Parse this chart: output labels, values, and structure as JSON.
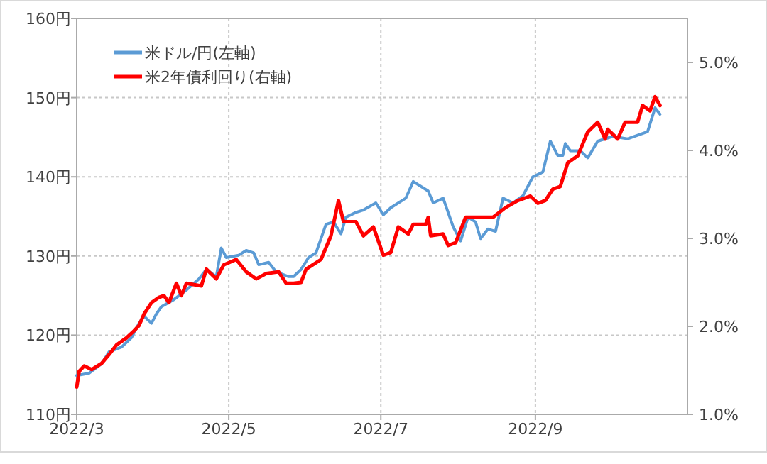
{
  "chart_data": {
    "type": "line",
    "xlim": [
      "2022-03-01",
      "2022-11-01"
    ],
    "xticks": [
      {
        "value": "2022-03-01",
        "label": "2022/3"
      },
      {
        "value": "2022-05-01",
        "label": "2022/5"
      },
      {
        "value": "2022-07-01",
        "label": "2022/7"
      },
      {
        "value": "2022-09-01",
        "label": "2022/9"
      }
    ],
    "ylim": [
      110,
      160
    ],
    "yticks": [
      {
        "value": 110,
        "label": "110円"
      },
      {
        "value": 120,
        "label": "120円"
      },
      {
        "value": 130,
        "label": "130円"
      },
      {
        "value": 140,
        "label": "140円"
      },
      {
        "value": 150,
        "label": "150円"
      },
      {
        "value": 160,
        "label": "160円"
      }
    ],
    "y2lim": [
      1,
      5.5
    ],
    "y2ticks": [
      {
        "value": 1,
        "label": "1.0%"
      },
      {
        "value": 2,
        "label": "2.0%"
      },
      {
        "value": 3,
        "label": "3.0%"
      },
      {
        "value": 4,
        "label": "4.0%"
      },
      {
        "value": 5,
        "label": "5.0%"
      }
    ],
    "grid": true,
    "legend": "top left",
    "line_style": "solid",
    "marker": "none",
    "series": [
      {
        "name": "米ドル/円(左軸)",
        "color": "#5b9bd5",
        "x": [
          "2022-03-01",
          "2022-03-06",
          "2022-03-11",
          "2022-03-14",
          "2022-03-19",
          "2022-03-23",
          "2022-03-26",
          "2022-03-28",
          "2022-03-31",
          "2022-04-02",
          "2022-04-04",
          "2022-04-09",
          "2022-04-14",
          "2022-04-19",
          "2022-04-22",
          "2022-04-26",
          "2022-04-28",
          "2022-04-30",
          "2022-05-05",
          "2022-05-08",
          "2022-05-11",
          "2022-05-13",
          "2022-05-17",
          "2022-05-20",
          "2022-05-25",
          "2022-05-27",
          "2022-05-30",
          "2022-06-02",
          "2022-06-05",
          "2022-06-09",
          "2022-06-12",
          "2022-06-15",
          "2022-06-17",
          "2022-06-21",
          "2022-06-24",
          "2022-06-29",
          "2022-07-02",
          "2022-07-05",
          "2022-07-11",
          "2022-07-14",
          "2022-07-20",
          "2022-07-22",
          "2022-07-26",
          "2022-07-30",
          "2022-08-02",
          "2022-08-05",
          "2022-08-08",
          "2022-08-10",
          "2022-08-13",
          "2022-08-16",
          "2022-08-19",
          "2022-08-23",
          "2022-08-27",
          "2022-08-31",
          "2022-09-04",
          "2022-09-07",
          "2022-09-10",
          "2022-09-12",
          "2022-09-13",
          "2022-09-15",
          "2022-09-19",
          "2022-09-22",
          "2022-09-26",
          "2022-10-02",
          "2022-10-08",
          "2022-10-16",
          "2022-10-19",
          "2022-10-21"
        ],
        "values": [
          114.9,
          115.2,
          116.4,
          117.9,
          118.5,
          119.7,
          121.5,
          122.4,
          121.5,
          122.7,
          123.6,
          124.5,
          125.7,
          127.1,
          128.3,
          127.4,
          131.0,
          129.8,
          130.1,
          130.7,
          130.4,
          128.9,
          129.2,
          128.0,
          127.4,
          127.4,
          128.3,
          129.8,
          130.4,
          134.0,
          134.3,
          132.8,
          134.9,
          135.5,
          135.8,
          136.7,
          135.2,
          136.1,
          137.3,
          139.4,
          138.2,
          136.7,
          137.3,
          133.7,
          131.9,
          134.9,
          134.3,
          132.2,
          133.4,
          133.1,
          137.3,
          136.7,
          137.6,
          140.0,
          140.6,
          144.5,
          142.7,
          142.7,
          144.2,
          143.3,
          143.3,
          142.4,
          144.5,
          145.1,
          144.8,
          145.7,
          148.7,
          147.9
        ]
      },
      {
        "name": "米2年債利回り(右軸)",
        "color": "#ff0000",
        "axis": "y2",
        "x": [
          "2022-03-01",
          "2022-03-02",
          "2022-03-04",
          "2022-03-07",
          "2022-03-11",
          "2022-03-14",
          "2022-03-17",
          "2022-03-21",
          "2022-03-24",
          "2022-03-26",
          "2022-03-28",
          "2022-03-31",
          "2022-04-03",
          "2022-04-05",
          "2022-04-07",
          "2022-04-10",
          "2022-04-12",
          "2022-04-14",
          "2022-04-20",
          "2022-04-22",
          "2022-04-26",
          "2022-04-29",
          "2022-05-04",
          "2022-05-08",
          "2022-05-12",
          "2022-05-16",
          "2022-05-21",
          "2022-05-24",
          "2022-05-27",
          "2022-05-30",
          "2022-06-01",
          "2022-06-07",
          "2022-06-11",
          "2022-06-14",
          "2022-06-16",
          "2022-06-21",
          "2022-06-24",
          "2022-06-28",
          "2022-07-02",
          "2022-07-05",
          "2022-07-08",
          "2022-07-12",
          "2022-07-14",
          "2022-07-19",
          "2022-07-20",
          "2022-07-21",
          "2022-07-26",
          "2022-07-28",
          "2022-07-31",
          "2022-08-04",
          "2022-08-07",
          "2022-08-15",
          "2022-08-20",
          "2022-08-25",
          "2022-08-30",
          "2022-09-02",
          "2022-09-05",
          "2022-09-08",
          "2022-09-11",
          "2022-09-14",
          "2022-09-18",
          "2022-09-22",
          "2022-09-26",
          "2022-09-29",
          "2022-09-30",
          "2022-10-04",
          "2022-10-07",
          "2022-10-12",
          "2022-10-14",
          "2022-10-17",
          "2022-10-19",
          "2022-10-21"
        ],
        "values": [
          1.31,
          1.49,
          1.55,
          1.51,
          1.58,
          1.68,
          1.79,
          1.87,
          1.95,
          2.01,
          2.14,
          2.27,
          2.33,
          2.35,
          2.27,
          2.49,
          2.35,
          2.49,
          2.46,
          2.65,
          2.54,
          2.7,
          2.76,
          2.62,
          2.54,
          2.6,
          2.62,
          2.49,
          2.49,
          2.5,
          2.65,
          2.76,
          3.03,
          3.43,
          3.19,
          3.19,
          3.03,
          3.13,
          2.81,
          2.84,
          3.13,
          3.05,
          3.16,
          3.16,
          3.24,
          3.03,
          3.05,
          2.92,
          2.95,
          3.24,
          3.24,
          3.24,
          3.35,
          3.43,
          3.48,
          3.4,
          3.43,
          3.56,
          3.59,
          3.86,
          3.94,
          4.21,
          4.32,
          4.13,
          4.24,
          4.13,
          4.32,
          4.32,
          4.51,
          4.45,
          4.61,
          4.51
        ]
      }
    ]
  }
}
